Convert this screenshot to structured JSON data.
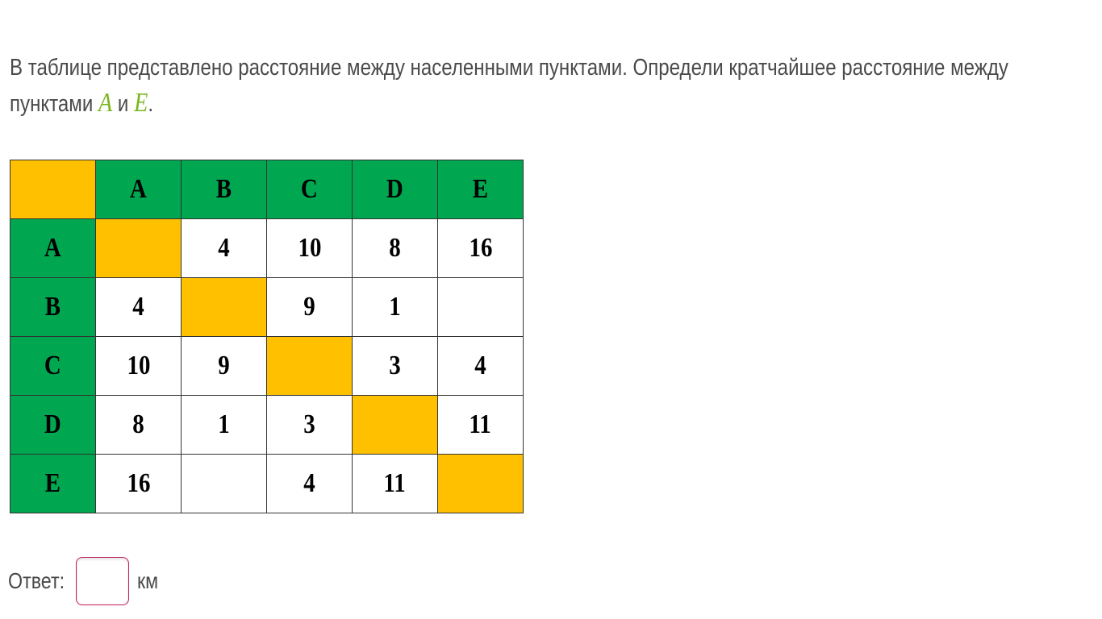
{
  "question": {
    "text_before": "В таблице представлено расстояние между населенными пунктами. Определи кратчайшее расстояние между пунктами ",
    "var1": "A",
    "conj": " и ",
    "var2": "E",
    "text_after": "."
  },
  "table": {
    "headers": [
      "",
      "A",
      "B",
      "C",
      "D",
      "E"
    ],
    "rows": [
      {
        "label": "A",
        "cells": [
          "",
          "4",
          "10",
          "8",
          "16"
        ]
      },
      {
        "label": "B",
        "cells": [
          "4",
          "",
          "9",
          "1",
          ""
        ]
      },
      {
        "label": "C",
        "cells": [
          "10",
          "9",
          "",
          "3",
          "4"
        ]
      },
      {
        "label": "D",
        "cells": [
          "8",
          "1",
          "3",
          "",
          "11"
        ]
      },
      {
        "label": "E",
        "cells": [
          "16",
          "",
          "4",
          "11",
          ""
        ]
      }
    ],
    "colors": {
      "header": "#00a650",
      "diagonal": "#ffc000",
      "cell": "#ffffff"
    }
  },
  "answer": {
    "label": "Ответ:",
    "value": "",
    "unit": "км"
  }
}
